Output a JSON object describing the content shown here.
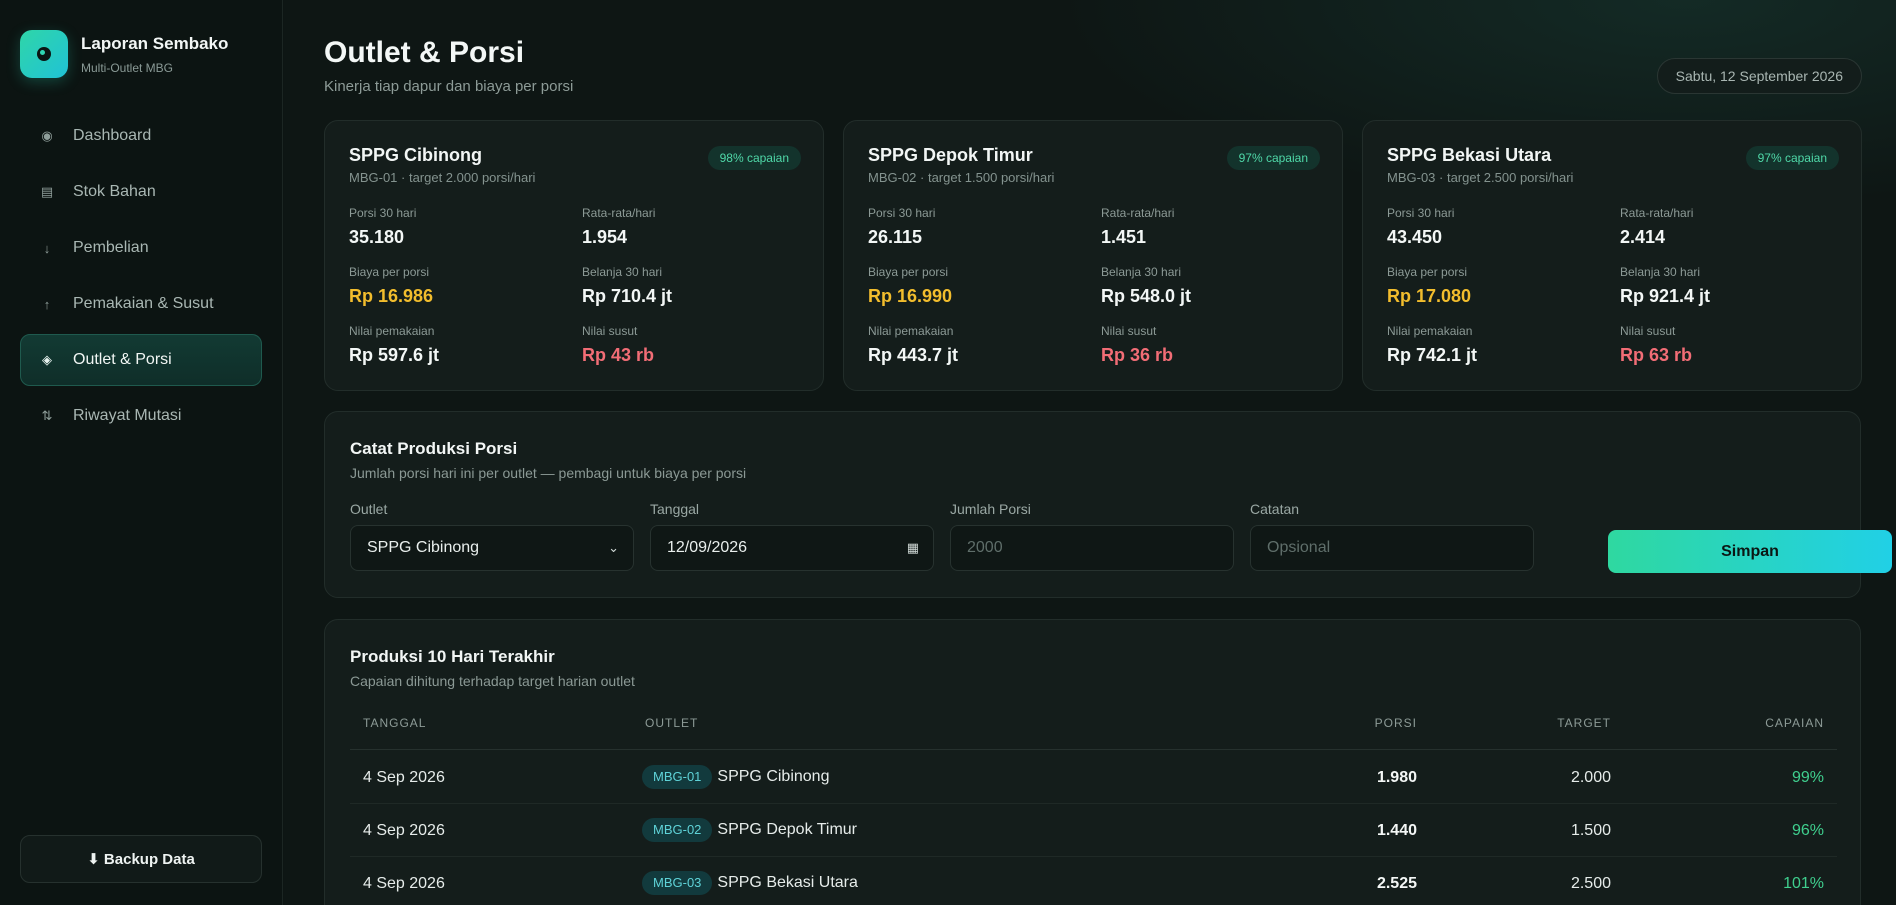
{
  "brand": {
    "title": "Laporan Sembako",
    "subtitle": "Multi-Outlet MBG"
  },
  "nav": [
    {
      "label": "Dashboard",
      "icon": "◉",
      "icon_name": "dashboard-icon"
    },
    {
      "label": "Stok Bahan",
      "icon": "▤",
      "icon_name": "stock-icon"
    },
    {
      "label": "Pembelian",
      "icon": "↓",
      "icon_name": "arrow-down-icon"
    },
    {
      "label": "Pemakaian & Susut",
      "icon": "↑",
      "icon_name": "arrow-up-icon"
    },
    {
      "label": "Outlet & Porsi",
      "icon": "◈",
      "icon_name": "diamond-icon"
    },
    {
      "label": "Riwayat Mutasi",
      "icon": "⇅",
      "icon_name": "swap-icon"
    }
  ],
  "backup_label": "⬇ Backup Data",
  "header": {
    "title": "Outlet & Porsi",
    "subtitle": "Kinerja tiap dapur dan biaya per porsi",
    "date": "Sabtu, 12 September 2026"
  },
  "outlets": [
    {
      "name": "SPPG Cibinong",
      "meta": "MBG-01 · target 2.000 porsi/hari",
      "badge": "98% capaian",
      "stats": {
        "porsi_label": "Porsi 30 hari",
        "porsi": "35.180",
        "rata_label": "Rata-rata/hari",
        "rata": "1.954",
        "biaya_label": "Biaya per porsi",
        "biaya": "Rp 16.986",
        "belanja_label": "Belanja 30 hari",
        "belanja": "Rp 710.4 jt",
        "pemakaian_label": "Nilai pemakaian",
        "pemakaian": "Rp 597.6 jt",
        "susut_label": "Nilai susut",
        "susut": "Rp 43 rb"
      }
    },
    {
      "name": "SPPG Depok Timur",
      "meta": "MBG-02 · target 1.500 porsi/hari",
      "badge": "97% capaian",
      "stats": {
        "porsi_label": "Porsi 30 hari",
        "porsi": "26.115",
        "rata_label": "Rata-rata/hari",
        "rata": "1.451",
        "biaya_label": "Biaya per porsi",
        "biaya": "Rp 16.990",
        "belanja_label": "Belanja 30 hari",
        "belanja": "Rp 548.0 jt",
        "pemakaian_label": "Nilai pemakaian",
        "pemakaian": "Rp 443.7 jt",
        "susut_label": "Nilai susut",
        "susut": "Rp 36 rb"
      }
    },
    {
      "name": "SPPG Bekasi Utara",
      "meta": "MBG-03 · target 2.500 porsi/hari",
      "badge": "97% capaian",
      "stats": {
        "porsi_label": "Porsi 30 hari",
        "porsi": "43.450",
        "rata_label": "Rata-rata/hari",
        "rata": "2.414",
        "biaya_label": "Biaya per porsi",
        "biaya": "Rp 17.080",
        "belanja_label": "Belanja 30 hari",
        "belanja": "Rp 921.4 jt",
        "pemakaian_label": "Nilai pemakaian",
        "pemakaian": "Rp 742.1 jt",
        "susut_label": "Nilai susut",
        "susut": "Rp 63 rb"
      }
    }
  ],
  "form": {
    "title": "Catat Produksi Porsi",
    "subtitle": "Jumlah porsi hari ini per outlet — pembagi untuk biaya per porsi",
    "outlet_label": "Outlet",
    "outlet_value": "SPPG Cibinong",
    "tanggal_label": "Tanggal",
    "tanggal_value": "12/09/2026",
    "jumlah_label": "Jumlah Porsi",
    "jumlah_placeholder": "2000",
    "catatan_label": "Catatan",
    "catatan_placeholder": "Opsional",
    "save_label": "Simpan"
  },
  "table": {
    "title": "Produksi 10 Hari Terakhir",
    "subtitle": "Capaian dihitung terhadap target harian outlet",
    "headers": {
      "tanggal": "TANGGAL",
      "outlet": "OUTLET",
      "porsi": "PORSI",
      "target": "TARGET",
      "capaian": "CAPAIAN"
    },
    "rows": [
      {
        "tanggal": "4 Sep 2026",
        "code": "MBG-01",
        "outlet": "SPPG Cibinong",
        "porsi": "1.980",
        "target": "2.000",
        "capaian": "99%"
      },
      {
        "tanggal": "4 Sep 2026",
        "code": "MBG-02",
        "outlet": "SPPG Depok Timur",
        "porsi": "1.440",
        "target": "1.500",
        "capaian": "96%"
      },
      {
        "tanggal": "4 Sep 2026",
        "code": "MBG-03",
        "outlet": "SPPG Bekasi Utara",
        "porsi": "2.525",
        "target": "2.500",
        "capaian": "101%"
      }
    ]
  },
  "colors": {
    "accent": "#2fd6a8",
    "cost": "#f2bd2d",
    "shrink": "#f26d76",
    "good": "#3fcf8e"
  }
}
